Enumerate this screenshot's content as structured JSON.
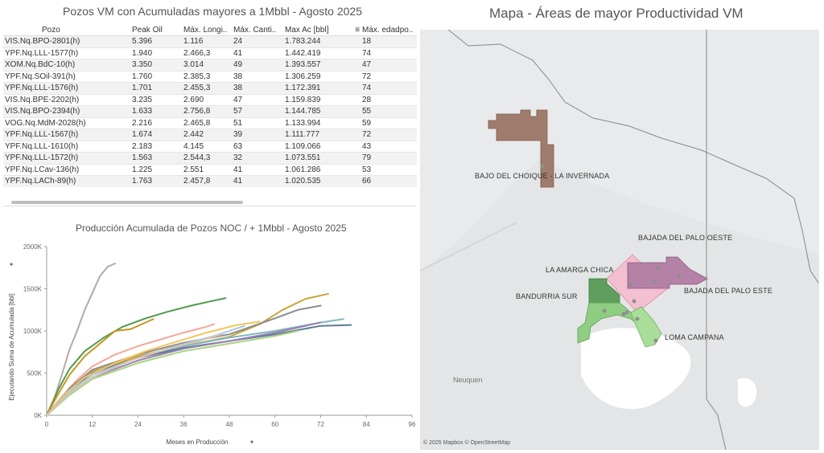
{
  "table": {
    "title": "Pozos VM con Acumuladas mayores a 1Mbbl - Agosto 2025",
    "columns": [
      "Pozo",
      "Peak Oil",
      "Máx. Longi..",
      "Máx. Canti..",
      "Max Ac [bbl]",
      "Máx. edadpo.."
    ],
    "sort_icon": "sort-descending-icon",
    "rows": [
      [
        "VIS.Nq.BPO-2801(h)",
        "5.396",
        "1.116",
        "24",
        "1.783.244",
        "18"
      ],
      [
        "YPF.Nq.LLL-1577(h)",
        "1.940",
        "2.466,3",
        "41",
        "1.442.419",
        "74"
      ],
      [
        "XOM.Nq.BdC-10(h)",
        "3.350",
        "3.014",
        "49",
        "1.393.557",
        "47"
      ],
      [
        "YPF.Nq.SOil-391(h)",
        "1.760",
        "2.385,3",
        "38",
        "1.306.259",
        "72"
      ],
      [
        "YPF.Nq.LLL-1576(h)",
        "1.701",
        "2.455,3",
        "38",
        "1.172.391",
        "74"
      ],
      [
        "VIS.Nq.BPE-2202(h)",
        "3.235",
        "2.690",
        "47",
        "1.159.839",
        "28"
      ],
      [
        "VIS.Nq.BPO-2394(h)",
        "1.633",
        "2.756,8",
        "57",
        "1.144.785",
        "55"
      ],
      [
        "VOG.Nq.MdM-2028(h)",
        "2.216",
        "2.465,8",
        "51",
        "1.133.994",
        "59"
      ],
      [
        "YPF.Nq.LLL-1567(h)",
        "1.674",
        "2.442",
        "39",
        "1.111.777",
        "72"
      ],
      [
        "YPF.Nq.LLL-1610(h)",
        "2.183",
        "4.145",
        "63",
        "1.109.066",
        "43"
      ],
      [
        "YPF.Nq.LLL-1572(h)",
        "1.563",
        "2.544,3",
        "32",
        "1.073.551",
        "79"
      ],
      [
        "YPF.Nq.LCav-136(h)",
        "1.225",
        "2.551",
        "41",
        "1.061.286",
        "53"
      ],
      [
        "YPF.Nq.LACh-89(h)",
        "1.763",
        "2.457,8",
        "41",
        "1.020.535",
        "66"
      ]
    ]
  },
  "chart_data": {
    "type": "line",
    "title": "Producción  Acumulada de Pozos NOC / + 1Mbbl - Agosto 2025",
    "xlabel": "Meses en Producción",
    "ylabel": "Ejecutando Suma de Acumulada [bbl]",
    "x_ticks": [
      "0",
      "12",
      "24",
      "36",
      "48",
      "60",
      "72",
      "84",
      "96"
    ],
    "y_ticks": [
      "0K",
      "500K",
      "1000K",
      "1500K",
      "2000K"
    ],
    "xlim": [
      0,
      96
    ],
    "ylim": [
      0,
      2000000
    ],
    "grid": false,
    "axis_pin_icon": "pin-icon",
    "series": [
      {
        "color": "#b5a9a3",
        "points": [
          [
            0,
            0
          ],
          [
            2,
            200000
          ],
          [
            4,
            480000
          ],
          [
            6,
            780000
          ],
          [
            8,
            1000000
          ],
          [
            10,
            1250000
          ],
          [
            12,
            1450000
          ],
          [
            14,
            1650000
          ],
          [
            16,
            1760000
          ],
          [
            18,
            1800000
          ]
        ]
      },
      {
        "color": "#4f9a4f",
        "points": [
          [
            0,
            0
          ],
          [
            3,
            300000
          ],
          [
            6,
            550000
          ],
          [
            10,
            760000
          ],
          [
            15,
            920000
          ],
          [
            20,
            1050000
          ],
          [
            26,
            1150000
          ],
          [
            32,
            1230000
          ],
          [
            38,
            1300000
          ],
          [
            44,
            1360000
          ],
          [
            47,
            1390000
          ]
        ]
      },
      {
        "color": "#c8961f",
        "points": [
          [
            0,
            0
          ],
          [
            3,
            250000
          ],
          [
            6,
            480000
          ],
          [
            10,
            700000
          ],
          [
            14,
            850000
          ],
          [
            18,
            1000000
          ],
          [
            22,
            1020000
          ],
          [
            26,
            1100000
          ],
          [
            28,
            1140000
          ]
        ]
      },
      {
        "color": "#c9a43a",
        "points": [
          [
            0,
            0
          ],
          [
            6,
            300000
          ],
          [
            12,
            520000
          ],
          [
            24,
            700000
          ],
          [
            36,
            820000
          ],
          [
            48,
            930000
          ],
          [
            56,
            1080000
          ],
          [
            62,
            1250000
          ],
          [
            68,
            1380000
          ],
          [
            74,
            1440000
          ]
        ]
      },
      {
        "color": "#f2a897",
        "points": [
          [
            0,
            0
          ],
          [
            4,
            220000
          ],
          [
            8,
            420000
          ],
          [
            12,
            580000
          ],
          [
            18,
            720000
          ],
          [
            24,
            820000
          ],
          [
            30,
            900000
          ],
          [
            36,
            980000
          ],
          [
            42,
            1050000
          ],
          [
            44,
            1080000
          ]
        ]
      },
      {
        "color": "#8c8c8c",
        "points": [
          [
            0,
            0
          ],
          [
            6,
            320000
          ],
          [
            12,
            540000
          ],
          [
            24,
            720000
          ],
          [
            36,
            860000
          ],
          [
            48,
            960000
          ],
          [
            60,
            1150000
          ],
          [
            66,
            1250000
          ],
          [
            72,
            1300000
          ]
        ]
      },
      {
        "color": "#7fb8c0",
        "points": [
          [
            0,
            0
          ],
          [
            6,
            280000
          ],
          [
            12,
            480000
          ],
          [
            24,
            680000
          ],
          [
            36,
            820000
          ],
          [
            48,
            920000
          ],
          [
            60,
            1000000
          ],
          [
            72,
            1100000
          ],
          [
            78,
            1140000
          ]
        ]
      },
      {
        "color": "#5b7c8e",
        "points": [
          [
            0,
            0
          ],
          [
            6,
            300000
          ],
          [
            12,
            500000
          ],
          [
            24,
            680000
          ],
          [
            36,
            800000
          ],
          [
            48,
            880000
          ],
          [
            60,
            960000
          ],
          [
            72,
            1060000
          ],
          [
            80,
            1070000
          ]
        ]
      },
      {
        "color": "#9b7fb3",
        "points": [
          [
            0,
            0
          ],
          [
            6,
            250000
          ],
          [
            12,
            450000
          ],
          [
            24,
            650000
          ],
          [
            36,
            790000
          ],
          [
            48,
            880000
          ],
          [
            60,
            980000
          ],
          [
            72,
            1100000
          ]
        ]
      },
      {
        "color": "#a7d37f",
        "points": [
          [
            0,
            0
          ],
          [
            6,
            240000
          ],
          [
            12,
            430000
          ],
          [
            24,
            620000
          ],
          [
            36,
            760000
          ],
          [
            48,
            850000
          ],
          [
            60,
            940000
          ],
          [
            66,
            1000000
          ]
        ]
      },
      {
        "color": "#f4c65a",
        "points": [
          [
            0,
            0
          ],
          [
            5,
            260000
          ],
          [
            10,
            450000
          ],
          [
            18,
            620000
          ],
          [
            26,
            760000
          ],
          [
            34,
            870000
          ],
          [
            42,
            980000
          ],
          [
            50,
            1070000
          ],
          [
            56,
            1110000
          ]
        ]
      },
      {
        "color": "#a8c7df",
        "points": [
          [
            0,
            0
          ],
          [
            6,
            280000
          ],
          [
            12,
            480000
          ],
          [
            24,
            680000
          ],
          [
            34,
            820000
          ],
          [
            44,
            940000
          ],
          [
            52,
            1060000
          ]
        ]
      },
      {
        "color": "#d9c3b3",
        "points": [
          [
            0,
            0
          ],
          [
            6,
            260000
          ],
          [
            12,
            450000
          ],
          [
            22,
            650000
          ],
          [
            32,
            790000
          ],
          [
            40,
            880000
          ],
          [
            46,
            960000
          ]
        ]
      }
    ]
  },
  "map": {
    "title": "Mapa - Áreas de mayor Productividad VM",
    "labels": {
      "bajo": "BAJO DEL CHOIQUE - LA INVERNADA",
      "bpo": "BAJADA DEL PALO OESTE",
      "lac": "LA AMARGA CHICA",
      "bpe": "BAJADA DEL PALO ESTE",
      "bs": "BANDURRIA SUR",
      "lc": "LOMA CAMPANA",
      "city": "Neuquen"
    },
    "credit": "© 2025 Mapbox © OpenStreetMap",
    "colors": {
      "bajo": "#a07c6c",
      "bpo": "#f5bfd2",
      "lac": "#5f9e5f",
      "bpe": "#b382a6",
      "bs": "#8fce82",
      "lc": "#a9de9a"
    }
  }
}
